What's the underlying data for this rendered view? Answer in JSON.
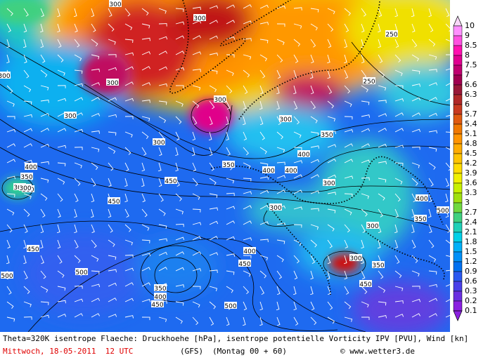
{
  "map": {
    "footer": {
      "description": "Theta=320K isentrope Flaeche: Druckhoehe [hPa], isentrope potentielle Vorticity IPV [PVU], Wind [kn]",
      "date": "Mittwoch, 18-05-2011  12 UTC",
      "model": "(GFS)",
      "run": "(Montag 00 + 60)",
      "credit": "© www.wetter3.de"
    },
    "colorbar": {
      "levels": [
        "10",
        "9",
        "8.5",
        "8",
        "7.5",
        "7",
        "6.6",
        "6.3",
        "6",
        "5.7",
        "5.4",
        "5.1",
        "4.8",
        "4.5",
        "4.2",
        "3.9",
        "3.6",
        "3.3",
        "3",
        "2.7",
        "2.4",
        "2.1",
        "1.8",
        "1.5",
        "1.2",
        "0.9",
        "0.6",
        "0.3",
        "0.2",
        "0.1"
      ],
      "colors": [
        "#f8d8f8",
        "#ff90ff",
        "#ff50e0",
        "#ff10b0",
        "#e00090",
        "#c00070",
        "#a00050",
        "#981838",
        "#b02828",
        "#c83a20",
        "#e05a10",
        "#f07800",
        "#ff9400",
        "#ffac00",
        "#ffc400",
        "#ffdc00",
        "#f0f000",
        "#c8f000",
        "#a0e010",
        "#70d840",
        "#40d080",
        "#20d0b8",
        "#00d0e8",
        "#00b0f8",
        "#0090f8",
        "#0070f0",
        "#2a58f0",
        "#4a40e8",
        "#6a30e0",
        "#8a20e0"
      ]
    },
    "contour_labels": [
      "300",
      "300",
      "250",
      "250",
      "300",
      "300",
      "300",
      "300",
      "300",
      "350",
      "400",
      "400",
      "400",
      "300",
      "350",
      "300",
      "400",
      "450",
      "300",
      "350",
      "450",
      "500",
      "400",
      "450",
      "350",
      "400",
      "450",
      "500",
      "300",
      "300",
      "350",
      "450",
      "500",
      "500",
      "400",
      "350",
      "450",
      "300",
      "300",
      "300"
    ]
  }
}
